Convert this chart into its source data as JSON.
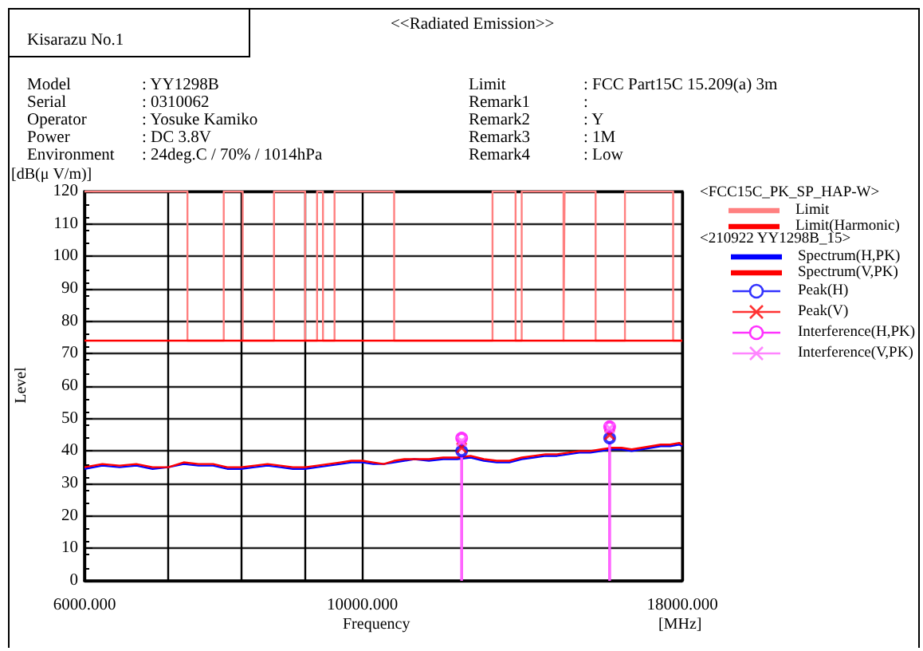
{
  "chart_data": {
    "type": "line",
    "title": "<<Radiated Emission>>",
    "xlabel": "Frequency",
    "ylabel": "Level",
    "legend_title": "<FCC15C_PK_SP_HAP-W>",
    "annotations": [
      "Kisarazu No.1",
      "Model : YY1298B",
      "Serial : 0310062",
      "Operator : Yosuke Kamiko",
      "Power : DC 3.8V",
      "Environment : 24deg.C / 70% / 1014hPa",
      "Limit : FCC Part15C 15.209(a) 3m",
      "Remark1 :",
      "Remark2 : Y",
      "Remark3 : 1M",
      "Remark4 : Low",
      "<210922 YY1298B_15>",
      "[dB(μ V/m)]",
      "[MHz]"
    ],
    "log": "x",
    "xlim": [
      6000,
      18000
    ],
    "xticks": [
      {
        "value": 6000,
        "label": "6000.000"
      },
      {
        "value": 7000,
        "label": null
      },
      {
        "value": 8000,
        "label": null
      },
      {
        "value": 9000,
        "label": null
      },
      {
        "value": 10000,
        "label": "10000.000"
      },
      {
        "value": 18000,
        "label": "18000.000"
      }
    ],
    "ylim": [
      0,
      120
    ],
    "yticks": [
      0,
      10,
      20,
      30,
      40,
      50,
      60,
      70,
      80,
      90,
      100,
      110,
      120
    ],
    "grid": true,
    "legend": "top right",
    "series": [
      {
        "name": "Limit",
        "type": "line",
        "color": "#ff8080",
        "x": [
          6000,
          7250,
          7250,
          7750,
          7750,
          8025,
          8025,
          8500,
          8500,
          9000,
          9000,
          9200,
          9200,
          9300,
          9300,
          9500,
          9500,
          10600,
          10600,
          12700,
          12700,
          13250,
          13250,
          13400,
          13400,
          14470,
          14470,
          14500,
          14500,
          15350,
          15350,
          16200,
          16200,
          17700,
          17700,
          18000
        ],
        "values": [
          120,
          120,
          74,
          74,
          120,
          120,
          74,
          74,
          120,
          120,
          74,
          74,
          120,
          120,
          74,
          74,
          120,
          120,
          74,
          74,
          120,
          120,
          74,
          74,
          120,
          120,
          74,
          74,
          120,
          120,
          74,
          74,
          120,
          120,
          74,
          74
        ]
      },
      {
        "name": "Limit(Harmonic)",
        "color": "#ff0000",
        "x": [
          6000,
          18000
        ],
        "values": [
          74,
          74
        ]
      },
      {
        "name": "Spectrum(H,PK)",
        "color": "#0000ff",
        "x": [
          6000,
          6200,
          6400,
          6600,
          6800,
          7000,
          7200,
          7400,
          7600,
          7800,
          8000,
          8200,
          8400,
          8600,
          8800,
          9000,
          9200,
          9400,
          9600,
          9800,
          10000,
          10200,
          10400,
          10600,
          10800,
          11000,
          11300,
          11600,
          11900,
          12200,
          12500,
          12800,
          13100,
          13400,
          13700,
          14000,
          14300,
          14600,
          14900,
          15200,
          15500,
          15800,
          16100,
          16400,
          16700,
          17000,
          17300,
          17600,
          17900,
          18000
        ],
        "values": [
          34.5,
          35.5,
          35,
          35.5,
          34.5,
          35,
          36,
          35.5,
          35.5,
          34.5,
          34.5,
          35,
          35.5,
          35,
          34.5,
          34.5,
          35,
          35.5,
          36,
          36.5,
          36.5,
          36,
          36,
          36.5,
          37,
          37.5,
          37,
          37.5,
          37.5,
          38,
          37,
          36.5,
          36.5,
          37.5,
          38,
          38.5,
          38.5,
          39,
          39.5,
          39.5,
          40,
          40.5,
          40.5,
          40,
          40.5,
          41,
          41.5,
          41.5,
          42,
          41.5
        ]
      },
      {
        "name": "Spectrum(V,PK)",
        "color": "#ff0000",
        "x": [
          6000,
          6200,
          6400,
          6600,
          6800,
          7000,
          7200,
          7400,
          7600,
          7800,
          8000,
          8200,
          8400,
          8600,
          8800,
          9000,
          9200,
          9400,
          9600,
          9800,
          10000,
          10200,
          10400,
          10600,
          10800,
          11000,
          11300,
          11600,
          11900,
          12200,
          12500,
          12800,
          13100,
          13400,
          13700,
          14000,
          14300,
          14600,
          14900,
          15200,
          15500,
          15800,
          16100,
          16400,
          16700,
          17000,
          17300,
          17600,
          17900,
          18000
        ],
        "values": [
          35,
          36,
          35.5,
          36,
          35,
          35,
          36.5,
          36,
          36,
          35,
          35,
          35.5,
          36,
          35.5,
          35,
          35,
          35.5,
          36,
          36.5,
          37,
          37,
          36.5,
          36,
          37,
          37.5,
          37.5,
          37.5,
          38,
          38,
          38.5,
          37.5,
          37,
          37,
          38,
          38.5,
          39,
          39,
          39.5,
          40,
          40,
          40.5,
          41,
          41,
          40.5,
          41,
          41.5,
          42,
          42,
          42.5,
          42
        ]
      },
      {
        "name": "Peak(H)",
        "type": "scatter",
        "marker": "circle",
        "color": "#0000ff",
        "x": [
          12000,
          15750
        ],
        "values": [
          40,
          44
        ]
      },
      {
        "name": "Peak(V)",
        "type": "scatter",
        "marker": "cross",
        "color": "#ff0000",
        "x": [
          12000,
          15750
        ],
        "values": [
          41,
          45
        ]
      },
      {
        "name": "Interference(H,PK)",
        "type": "lollipop",
        "marker": "circle",
        "color": "#ff00ff",
        "x": [
          12000,
          15750
        ],
        "values": [
          44,
          47.5
        ]
      },
      {
        "name": "Interference(V,PK)",
        "type": "lollipop",
        "marker": "cross",
        "color": "#ff66ff",
        "x": [
          12000,
          15750
        ],
        "values": [
          43,
          47
        ]
      }
    ]
  }
}
